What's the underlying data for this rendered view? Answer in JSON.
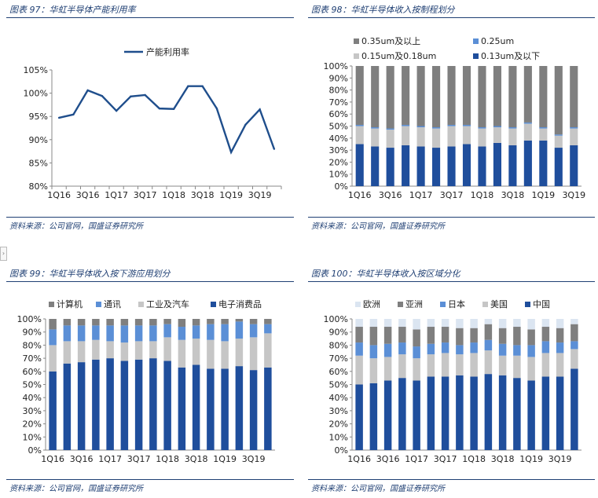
{
  "source_text": "资料来源：公司官网，国盛证券研究所",
  "nav_arrow": "›",
  "chart_data": [
    {
      "type": "line",
      "title": "图表 97：华虹半导体产能利用率",
      "series": [
        {
          "name": "产能利用率",
          "color": "#1f4e8c",
          "values": [
            94.7,
            95.4,
            100.6,
            99.4,
            96.2,
            99.3,
            99.6,
            96.7,
            96.6,
            101.5,
            101.5,
            96.7,
            87.3,
            93.2,
            96.5,
            88.0
          ]
        }
      ],
      "categories": [
        "1Q16",
        "2Q16",
        "3Q16",
        "4Q16",
        "1Q17",
        "2Q17",
        "3Q17",
        "4Q17",
        "1Q18",
        "2Q18",
        "3Q18",
        "4Q18",
        "1Q19",
        "2Q19",
        "3Q19",
        "4Q19"
      ],
      "tick_labels": [
        "1Q16",
        "3Q16",
        "1Q17",
        "3Q17",
        "1Q18",
        "3Q18",
        "1Q19",
        "3Q19"
      ],
      "ylim": [
        80,
        105
      ],
      "yticks": [
        "80%",
        "85%",
        "90%",
        "95%",
        "100%",
        "105%"
      ],
      "legend": "top"
    },
    {
      "type": "bar",
      "stacked": true,
      "title": "图表 98：华虹半导体收入按制程划分",
      "categories": [
        "1Q16",
        "2Q16",
        "3Q16",
        "4Q16",
        "1Q17",
        "2Q17",
        "3Q17",
        "4Q17",
        "1Q18",
        "2Q18",
        "3Q18",
        "4Q18",
        "1Q19",
        "2Q19",
        "3Q19"
      ],
      "tick_labels": [
        "1Q16",
        "3Q16",
        "1Q17",
        "3Q17",
        "1Q18",
        "3Q18",
        "1Q19",
        "3Q19"
      ],
      "series": [
        {
          "name": "0.13um及以下",
          "color": "#1f4e9c",
          "values": [
            35,
            33,
            32,
            34,
            33,
            32,
            33,
            35,
            33,
            36,
            34,
            38,
            38,
            32,
            34
          ]
        },
        {
          "name": "0.15um及0.18um",
          "color": "#c6c6c6",
          "values": [
            15,
            15,
            15,
            16,
            16,
            16,
            17,
            15,
            15,
            13,
            14,
            14,
            10,
            10,
            14
          ]
        },
        {
          "name": "0.25um",
          "color": "#5b8fd6",
          "values": [
            1,
            1,
            1,
            1,
            1,
            1,
            1,
            1,
            1,
            1,
            1,
            1,
            1,
            1,
            1
          ]
        },
        {
          "name": "0.35um及以上",
          "color": "#7f7f7f",
          "values": [
            49,
            51,
            52,
            49,
            50,
            51,
            49,
            49,
            51,
            50,
            51,
            47,
            51,
            57,
            51
          ]
        }
      ],
      "legend_order": [
        "0.35um及以上",
        "0.25um",
        "0.15um及0.18um",
        "0.13um及以下"
      ],
      "ylim": [
        0,
        100
      ],
      "yticks": [
        "0%",
        "10%",
        "20%",
        "30%",
        "40%",
        "50%",
        "60%",
        "70%",
        "80%",
        "90%",
        "100%"
      ],
      "legend": "top"
    },
    {
      "type": "bar",
      "stacked": true,
      "title": "图表 99：华虹半导体收入按下游应用划分",
      "categories": [
        "1Q16",
        "2Q16",
        "3Q16",
        "4Q16",
        "1Q17",
        "2Q17",
        "3Q17",
        "4Q17",
        "1Q18",
        "2Q18",
        "3Q18",
        "4Q18",
        "1Q19",
        "2Q19",
        "3Q19",
        "4Q19"
      ],
      "tick_labels": [
        "1Q16",
        "3Q16",
        "1Q17",
        "3Q17",
        "1Q18",
        "3Q18",
        "1Q19",
        "3Q19"
      ],
      "series": [
        {
          "name": "电子消费品",
          "color": "#1f4e9c",
          "values": [
            60,
            66,
            67,
            69,
            70,
            68,
            69,
            70,
            68,
            63,
            65,
            62,
            62,
            64,
            61,
            63
          ]
        },
        {
          "name": "工业及汽车",
          "color": "#c6c6c6",
          "values": [
            20,
            17,
            16,
            15,
            13,
            14,
            14,
            13,
            18,
            21,
            20,
            22,
            21,
            21,
            25,
            26
          ]
        },
        {
          "name": "通讯",
          "color": "#5b8fd6",
          "values": [
            12,
            12,
            12,
            11,
            12,
            13,
            12,
            12,
            10,
            10,
            10,
            12,
            13,
            13,
            10,
            7
          ]
        },
        {
          "name": "计算机",
          "color": "#7f7f7f",
          "values": [
            8,
            5,
            5,
            5,
            5,
            5,
            5,
            5,
            4,
            6,
            5,
            4,
            4,
            2,
            4,
            4
          ]
        }
      ],
      "legend_order": [
        "计算机",
        "通讯",
        "工业及汽车",
        "电子消费品"
      ],
      "ylim": [
        0,
        100
      ],
      "yticks": [
        "0%",
        "10%",
        "20%",
        "30%",
        "40%",
        "50%",
        "60%",
        "70%",
        "80%",
        "90%",
        "100%"
      ],
      "legend": "top"
    },
    {
      "type": "bar",
      "stacked": true,
      "title": "图表 100：华虹半导体收入按区域分化",
      "categories": [
        "1Q16",
        "2Q16",
        "3Q16",
        "4Q16",
        "1Q17",
        "2Q17",
        "3Q17",
        "4Q17",
        "1Q18",
        "2Q18",
        "3Q18",
        "4Q18",
        "1Q19",
        "2Q19",
        "3Q19",
        "4Q19"
      ],
      "tick_labels": [
        "1Q16",
        "3Q16",
        "1Q17",
        "3Q17",
        "1Q18",
        "3Q18",
        "1Q19",
        "3Q19"
      ],
      "series": [
        {
          "name": "中国",
          "color": "#1f4e9c",
          "values": [
            50,
            51,
            53,
            55,
            53,
            56,
            56,
            57,
            56,
            58,
            57,
            55,
            53,
            56,
            56,
            62
          ]
        },
        {
          "name": "美国",
          "color": "#c6c6c6",
          "values": [
            22,
            19,
            18,
            18,
            17,
            17,
            18,
            16,
            18,
            18,
            15,
            17,
            18,
            18,
            18,
            15
          ]
        },
        {
          "name": "日本",
          "color": "#5b8fd6",
          "values": [
            10,
            10,
            10,
            9,
            9,
            8,
            8,
            7,
            8,
            8,
            9,
            8,
            9,
            9,
            8,
            6
          ]
        },
        {
          "name": "亚洲",
          "color": "#7f7f7f",
          "values": [
            12,
            14,
            13,
            12,
            13,
            13,
            12,
            13,
            11,
            12,
            12,
            14,
            12,
            11,
            11,
            13
          ]
        },
        {
          "name": "欧洲",
          "color": "#dbe5f1",
          "values": [
            6,
            6,
            6,
            6,
            8,
            6,
            6,
            7,
            7,
            4,
            7,
            6,
            8,
            6,
            7,
            4
          ]
        }
      ],
      "legend_order": [
        "欧洲",
        "亚洲",
        "日本",
        "美国",
        "中国"
      ],
      "ylim": [
        0,
        100
      ],
      "yticks": [
        "0%",
        "10%",
        "20%",
        "30%",
        "40%",
        "50%",
        "60%",
        "70%",
        "80%",
        "90%",
        "100%"
      ],
      "legend": "top"
    }
  ]
}
